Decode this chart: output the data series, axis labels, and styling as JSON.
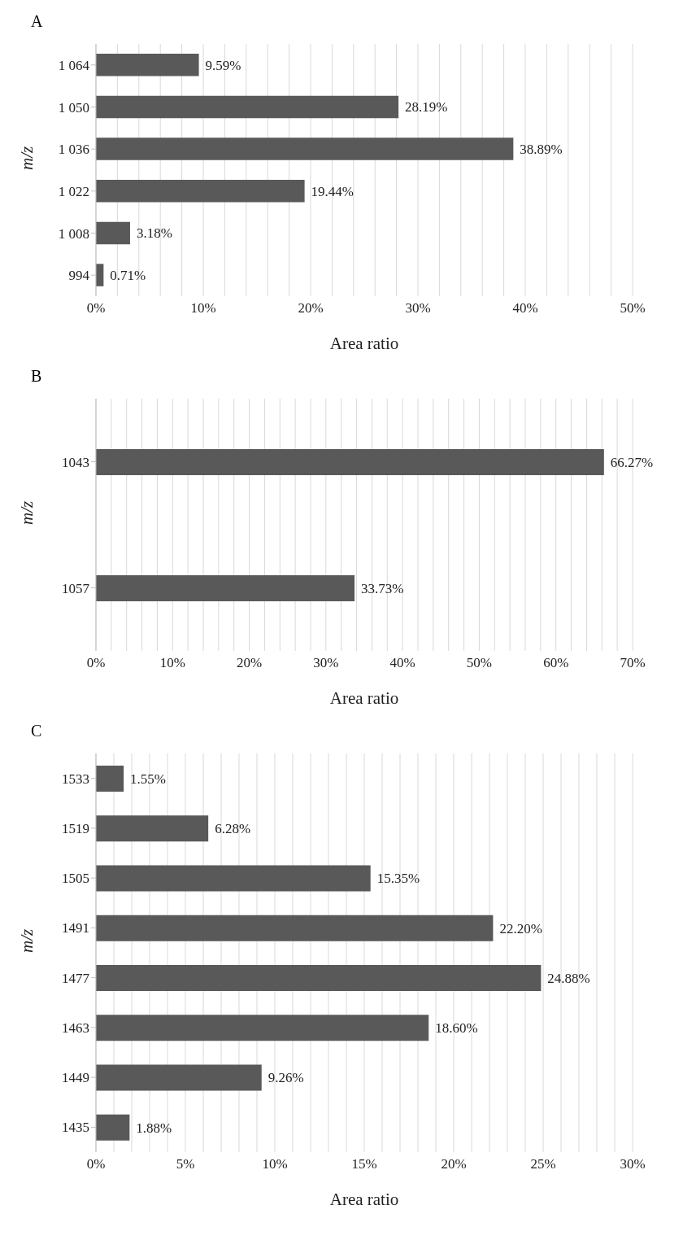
{
  "chart_data": [
    {
      "type": "bar",
      "orientation": "horizontal",
      "title": "A",
      "xlabel": "Area ratio",
      "ylabel": "m/z",
      "categories": [
        "1 064",
        "1 050",
        "1 036",
        "1 022",
        "1 008",
        "994"
      ],
      "values": [
        9.59,
        28.19,
        38.89,
        19.44,
        3.18,
        0.71
      ],
      "value_labels": [
        "9.59%",
        "28.19%",
        "38.89%",
        "19.44%",
        "3.18%",
        "0.71%"
      ],
      "color": "#595959",
      "xlim": [
        0,
        50
      ],
      "xticks": [
        {
          "value": 0,
          "label": "0%"
        },
        {
          "value": 2,
          "label": null
        },
        {
          "value": 4,
          "label": null
        },
        {
          "value": 6,
          "label": null
        },
        {
          "value": 8,
          "label": null
        },
        {
          "value": 10,
          "label": "10%"
        },
        {
          "value": 12,
          "label": null
        },
        {
          "value": 14,
          "label": null
        },
        {
          "value": 16,
          "label": null
        },
        {
          "value": 18,
          "label": null
        },
        {
          "value": 20,
          "label": "20%"
        },
        {
          "value": 22,
          "label": null
        },
        {
          "value": 24,
          "label": null
        },
        {
          "value": 26,
          "label": null
        },
        {
          "value": 28,
          "label": null
        },
        {
          "value": 30,
          "label": "30%"
        },
        {
          "value": 32,
          "label": null
        },
        {
          "value": 34,
          "label": null
        },
        {
          "value": 36,
          "label": null
        },
        {
          "value": 38,
          "label": null
        },
        {
          "value": 40,
          "label": "40%"
        },
        {
          "value": 42,
          "label": null
        },
        {
          "value": 44,
          "label": null
        },
        {
          "value": 46,
          "label": null
        },
        {
          "value": 48,
          "label": null
        },
        {
          "value": 50,
          "label": "50%"
        }
      ],
      "grid": "x",
      "legend": false
    },
    {
      "type": "bar",
      "orientation": "horizontal",
      "title": "B",
      "xlabel": "Area ratio",
      "ylabel": "m/z",
      "categories": [
        "1043",
        "1057"
      ],
      "values": [
        66.27,
        33.73
      ],
      "value_labels": [
        "66.27%",
        "33.73%"
      ],
      "color": "#595959",
      "xlim": [
        0,
        70
      ],
      "xticks": [
        {
          "value": 0,
          "label": "0%"
        },
        {
          "value": 2,
          "label": null
        },
        {
          "value": 4,
          "label": null
        },
        {
          "value": 6,
          "label": null
        },
        {
          "value": 8,
          "label": null
        },
        {
          "value": 10,
          "label": "10%"
        },
        {
          "value": 12,
          "label": null
        },
        {
          "value": 14,
          "label": null
        },
        {
          "value": 16,
          "label": null
        },
        {
          "value": 18,
          "label": null
        },
        {
          "value": 20,
          "label": "20%"
        },
        {
          "value": 22,
          "label": null
        },
        {
          "value": 24,
          "label": null
        },
        {
          "value": 26,
          "label": null
        },
        {
          "value": 28,
          "label": null
        },
        {
          "value": 30,
          "label": "30%"
        },
        {
          "value": 32,
          "label": null
        },
        {
          "value": 34,
          "label": null
        },
        {
          "value": 36,
          "label": null
        },
        {
          "value": 38,
          "label": null
        },
        {
          "value": 40,
          "label": "40%"
        },
        {
          "value": 42,
          "label": null
        },
        {
          "value": 44,
          "label": null
        },
        {
          "value": 46,
          "label": null
        },
        {
          "value": 48,
          "label": null
        },
        {
          "value": 50,
          "label": "50%"
        },
        {
          "value": 52,
          "label": null
        },
        {
          "value": 54,
          "label": null
        },
        {
          "value": 56,
          "label": null
        },
        {
          "value": 58,
          "label": null
        },
        {
          "value": 60,
          "label": "60%"
        },
        {
          "value": 62,
          "label": null
        },
        {
          "value": 64,
          "label": null
        },
        {
          "value": 66,
          "label": null
        },
        {
          "value": 68,
          "label": null
        },
        {
          "value": 70,
          "label": "70%"
        }
      ],
      "grid": "x",
      "legend": false
    },
    {
      "type": "bar",
      "orientation": "horizontal",
      "title": "C",
      "xlabel": "Area ratio",
      "ylabel": "m/z",
      "categories": [
        "1533",
        "1519",
        "1505",
        "1491",
        "1477",
        "1463",
        "1449",
        "1435"
      ],
      "values": [
        1.55,
        6.28,
        15.35,
        22.2,
        24.88,
        18.6,
        9.26,
        1.88
      ],
      "value_labels": [
        "1.55%",
        "6.28%",
        "15.35%",
        "22.20%",
        "24.88%",
        "18.60%",
        "9.26%",
        "1.88%"
      ],
      "color": "#595959",
      "xlim": [
        0,
        30
      ],
      "xticks": [
        {
          "value": 0,
          "label": "0%"
        },
        {
          "value": 1,
          "label": null
        },
        {
          "value": 2,
          "label": null
        },
        {
          "value": 3,
          "label": null
        },
        {
          "value": 4,
          "label": null
        },
        {
          "value": 5,
          "label": "5%"
        },
        {
          "value": 6,
          "label": null
        },
        {
          "value": 7,
          "label": null
        },
        {
          "value": 8,
          "label": null
        },
        {
          "value": 9,
          "label": null
        },
        {
          "value": 10,
          "label": "10%"
        },
        {
          "value": 11,
          "label": null
        },
        {
          "value": 12,
          "label": null
        },
        {
          "value": 13,
          "label": null
        },
        {
          "value": 14,
          "label": null
        },
        {
          "value": 15,
          "label": "15%"
        },
        {
          "value": 16,
          "label": null
        },
        {
          "value": 17,
          "label": null
        },
        {
          "value": 18,
          "label": null
        },
        {
          "value": 19,
          "label": null
        },
        {
          "value": 20,
          "label": "20%"
        },
        {
          "value": 21,
          "label": null
        },
        {
          "value": 22,
          "label": null
        },
        {
          "value": 23,
          "label": null
        },
        {
          "value": 24,
          "label": null
        },
        {
          "value": 25,
          "label": "25%"
        },
        {
          "value": 26,
          "label": null
        },
        {
          "value": 27,
          "label": null
        },
        {
          "value": 28,
          "label": null
        },
        {
          "value": 29,
          "label": null
        },
        {
          "value": 30,
          "label": "30%"
        }
      ],
      "grid": "x",
      "legend": false
    }
  ]
}
